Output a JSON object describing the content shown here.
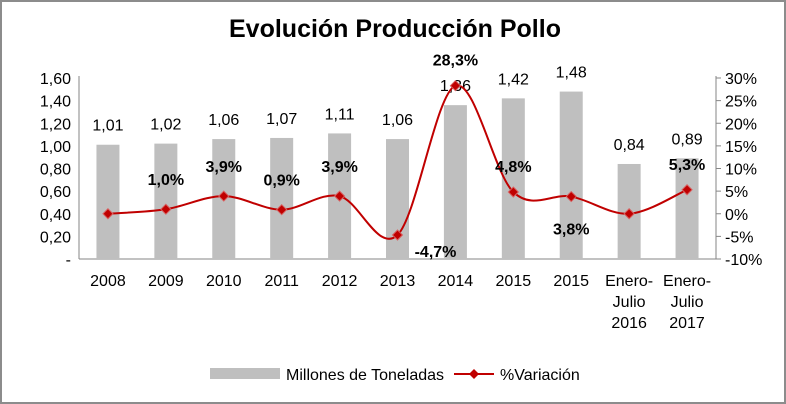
{
  "chart_data": {
    "type": "bar+line",
    "title": "Evolución Producción Pollo",
    "categories": [
      "2008",
      "2009",
      "2010",
      "2011",
      "2012",
      "2013",
      "2014",
      "2015",
      "2015",
      "Enero-\nJulio\n2016",
      "Enero-\nJulio\n2017"
    ],
    "series": [
      {
        "name": "Millones de Toneladas",
        "type": "bar",
        "axis": "left",
        "color": "#bfbfbf",
        "values": [
          1.01,
          1.02,
          1.06,
          1.07,
          1.11,
          1.06,
          1.36,
          1.42,
          1.48,
          0.84,
          0.89
        ],
        "labels": [
          "1,01",
          "1,02",
          "1,06",
          "1,07",
          "1,11",
          "1,06",
          "1,36",
          "1,42",
          "1,48",
          "0,84",
          "0,89"
        ]
      },
      {
        "name": "%Variación",
        "type": "line",
        "axis": "right",
        "color": "#c00000",
        "values": [
          0,
          1.0,
          3.9,
          0.9,
          3.9,
          -4.7,
          28.3,
          4.8,
          3.8,
          0,
          5.3
        ],
        "labels": [
          "",
          "1,0%",
          "3,9%",
          "0,9%",
          "3,9%",
          "-4,7%",
          "28,3%",
          "4,8%",
          "3,8%",
          "",
          "5,3%"
        ]
      }
    ],
    "y_left": {
      "range": [
        0,
        1.6
      ],
      "ticks": [
        "-",
        "0,20",
        "0,40",
        "0,60",
        "0,80",
        "1,00",
        "1,20",
        "1,40",
        "1,60"
      ]
    },
    "y_right": {
      "range": [
        -10,
        30
      ],
      "ticks": [
        "-10%",
        "-5%",
        "0%",
        "5%",
        "10%",
        "15%",
        "20%",
        "25%",
        "30%"
      ]
    },
    "grid": false,
    "legend": "bottom"
  }
}
